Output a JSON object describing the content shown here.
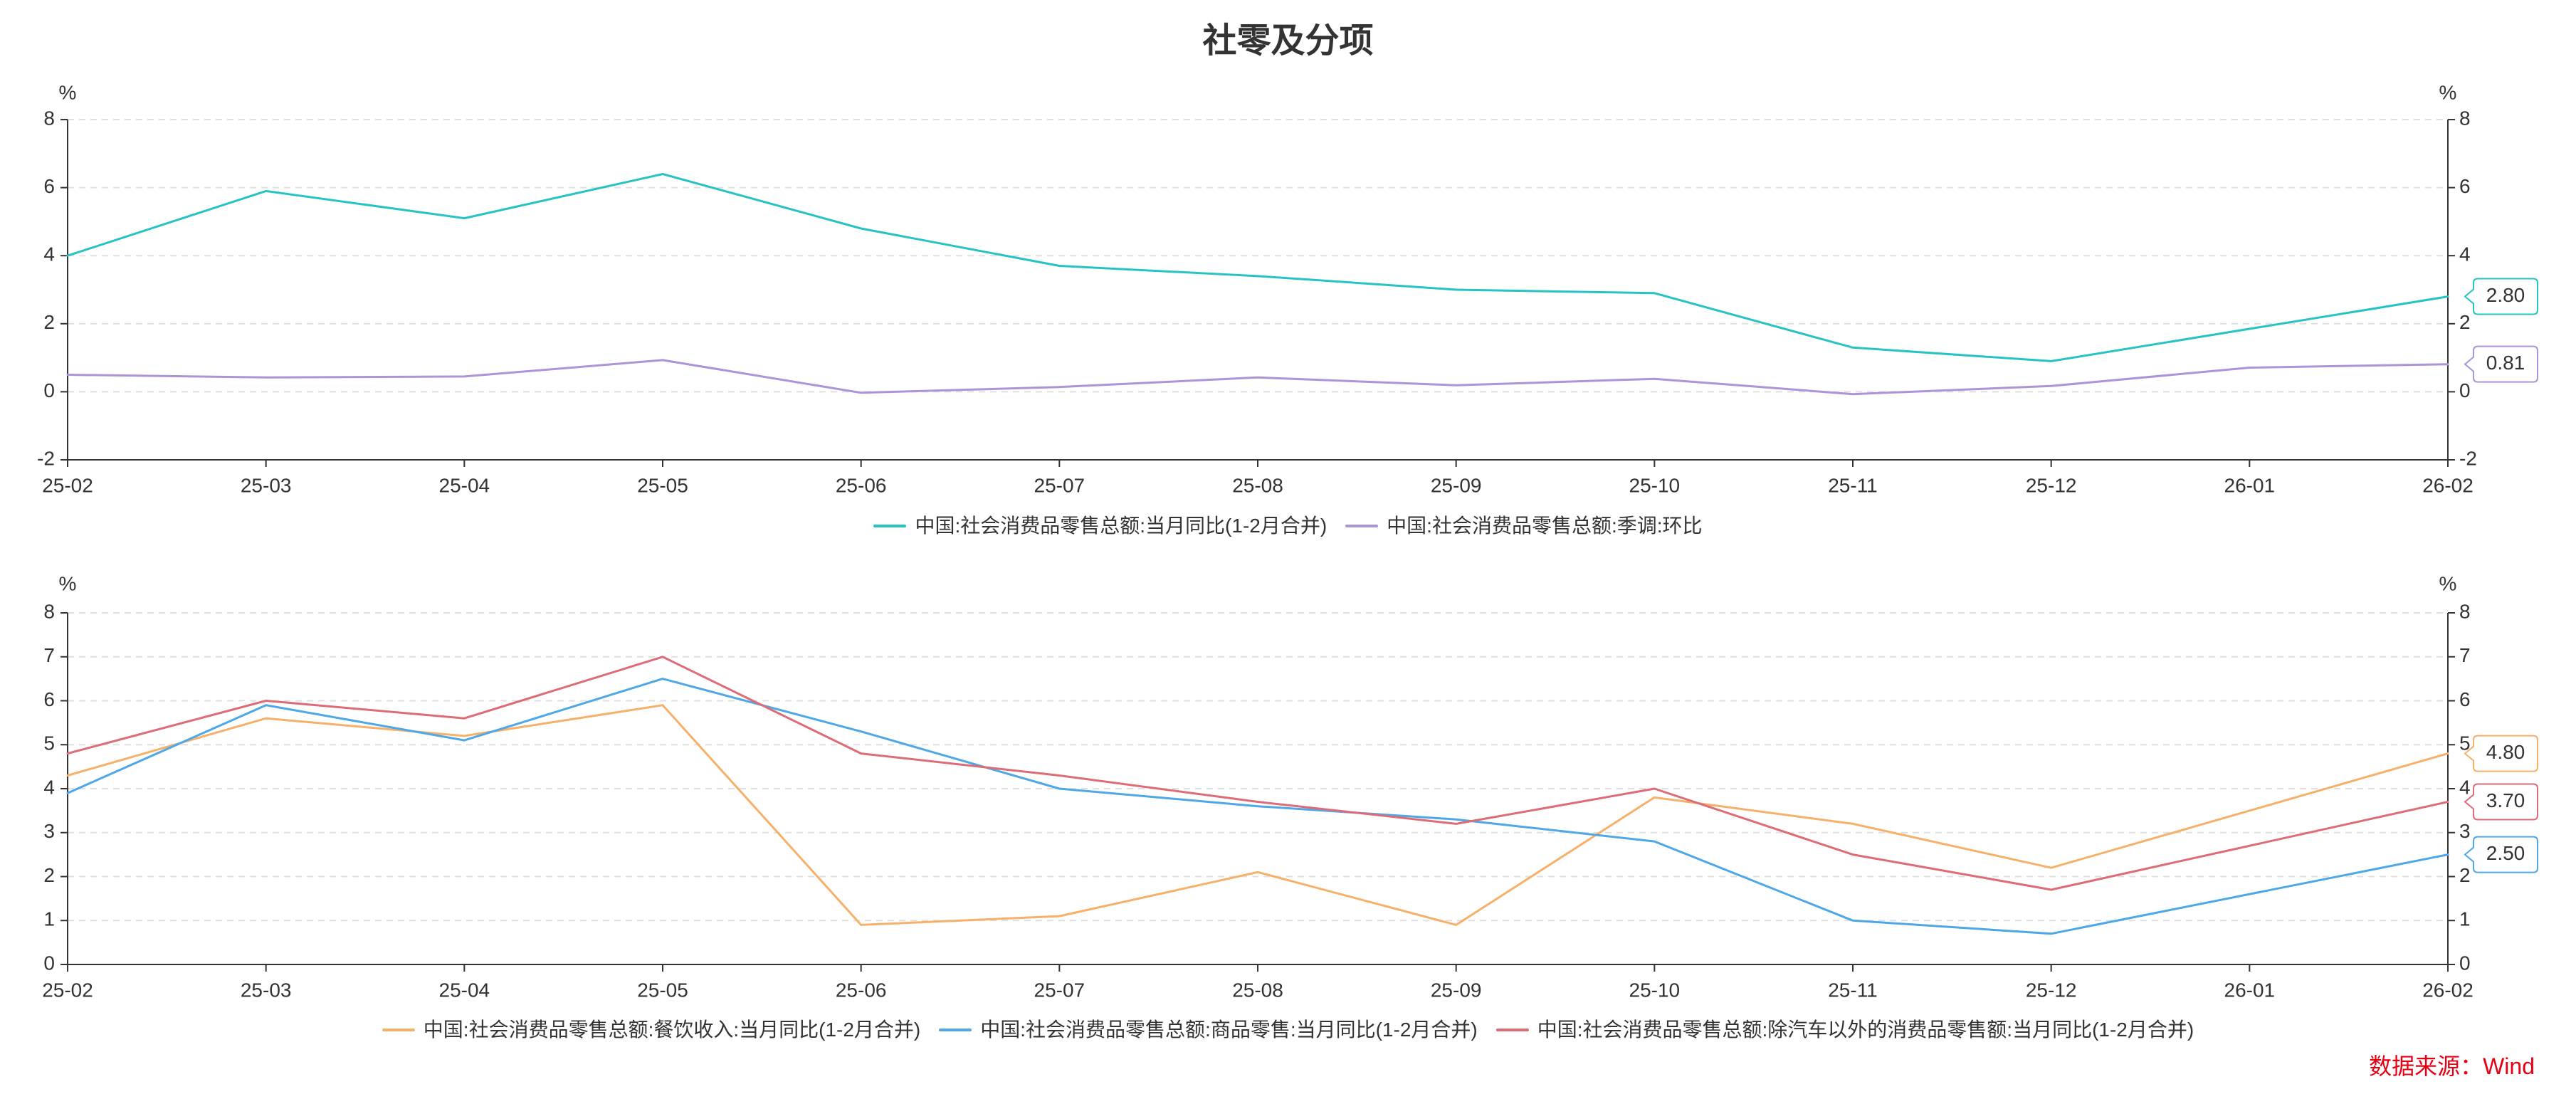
{
  "title": "社零及分项",
  "source": "数据来源：Wind",
  "colors": {
    "axis": "#333333",
    "grid": "#e0e0e0",
    "text": "#333333",
    "label_bg": "#ffffff",
    "source": "#e60012"
  },
  "chart_data": [
    {
      "type": "line",
      "y_unit": "%",
      "categories": [
        "25-02",
        "25-03",
        "25-04",
        "25-05",
        "25-06",
        "25-07",
        "25-08",
        "25-09",
        "25-10",
        "25-11",
        "25-12",
        "26-01",
        "26-02"
      ],
      "ylim": [
        -2,
        8
      ],
      "yticks": [
        -2,
        0,
        2,
        4,
        6,
        8
      ],
      "grid": true,
      "series": [
        {
          "name": "中国:社会消费品零售总额:当月同比(1-2月合并)",
          "color": "#27c3c4",
          "values": [
            4.0,
            5.9,
            5.1,
            6.4,
            4.8,
            3.7,
            3.4,
            3.0,
            2.9,
            1.3,
            0.9,
            null,
            2.8
          ],
          "end_label": "2.80"
        },
        {
          "name": "中国:社会消费品零售总额:季调:环比",
          "color": "#ab94d8",
          "values": [
            0.5,
            0.42,
            0.45,
            0.93,
            -0.03,
            0.14,
            0.42,
            0.19,
            0.38,
            -0.07,
            0.17,
            0.71,
            0.81
          ],
          "end_label": "0.81"
        }
      ]
    },
    {
      "type": "line",
      "y_unit": "%",
      "categories": [
        "25-02",
        "25-03",
        "25-04",
        "25-05",
        "25-06",
        "25-07",
        "25-08",
        "25-09",
        "25-10",
        "25-11",
        "25-12",
        "26-01",
        "26-02"
      ],
      "ylim": [
        0,
        8
      ],
      "yticks": [
        0,
        1,
        2,
        3,
        4,
        5,
        6,
        7,
        8
      ],
      "grid": true,
      "series": [
        {
          "name": "中国:社会消费品零售总额:餐饮收入:当月同比(1-2月合并)",
          "color": "#f7b069",
          "values": [
            4.3,
            5.6,
            5.2,
            5.9,
            0.9,
            1.1,
            2.1,
            0.9,
            3.8,
            3.2,
            2.2,
            null,
            4.8
          ],
          "end_label": "4.80"
        },
        {
          "name": "中国:社会消费品零售总额:商品零售:当月同比(1-2月合并)",
          "color": "#4ea7e6",
          "values": [
            3.9,
            5.9,
            5.1,
            6.5,
            5.3,
            4.0,
            3.6,
            3.3,
            2.8,
            1.0,
            0.7,
            null,
            2.5
          ],
          "end_label": "2.50"
        },
        {
          "name": "中国:社会消费品零售总额:除汽车以外的消费品零售额:当月同比(1-2月合并)",
          "color": "#dd6c76",
          "values": [
            4.8,
            6.0,
            5.6,
            7.0,
            4.8,
            4.3,
            3.7,
            3.2,
            4.0,
            2.5,
            1.7,
            null,
            3.7
          ],
          "end_label": "3.70"
        }
      ]
    }
  ]
}
